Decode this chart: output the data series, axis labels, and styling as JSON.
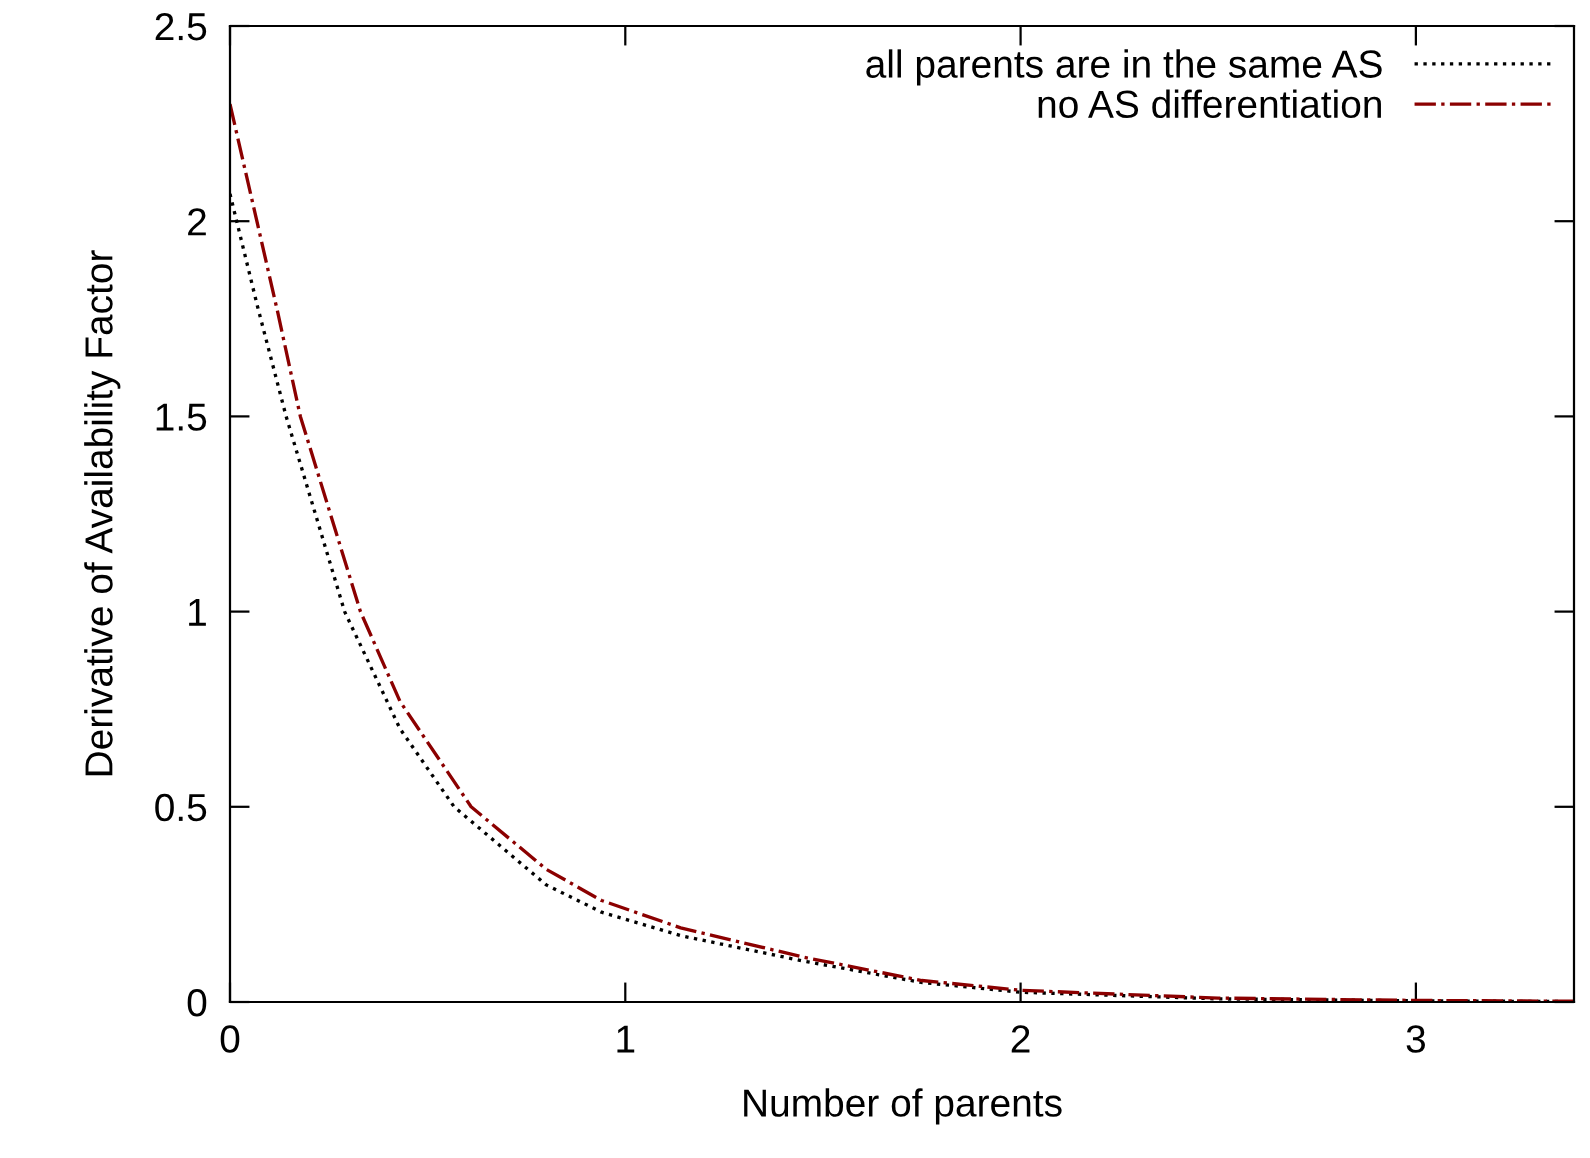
{
  "chart_data": {
    "type": "line",
    "xlabel": "Number of parents",
    "ylabel": "Derivative of Availability Factor",
    "xlim": [
      0,
      3.4
    ],
    "xticks": [
      0,
      1,
      2,
      3
    ],
    "ylim": [
      0,
      2.5
    ],
    "yticks": [
      0,
      0.5,
      1,
      1.5,
      2,
      2.5
    ],
    "grid": false,
    "legend": "top right",
    "marker": "none",
    "series": [
      {
        "name": "all parents are in the same AS",
        "color": "#000000",
        "line_style": "dotted",
        "x": [
          0,
          0.07,
          0.142,
          0.29,
          0.43,
          0.567,
          0.8,
          0.94,
          1.14,
          1.45,
          1.75,
          2.0,
          2.5,
          3.0,
          3.4
        ],
        "values": [
          2.07,
          1.78,
          1.5,
          1.0,
          0.7,
          0.5,
          0.3,
          0.23,
          0.17,
          0.105,
          0.05,
          0.025,
          0.008,
          0.003,
          0.001
        ]
      },
      {
        "name": "no AS differentiation",
        "color": "#8b0000",
        "line_style": "dashdot",
        "x": [
          0,
          0.068,
          0.12,
          0.178,
          0.33,
          0.43,
          0.61,
          0.8,
          0.94,
          1.14,
          1.45,
          1.75,
          2.0,
          2.5,
          3.0,
          3.4
        ],
        "values": [
          2.3,
          2.0,
          1.77,
          1.5,
          1.0,
          0.77,
          0.5,
          0.34,
          0.26,
          0.19,
          0.115,
          0.055,
          0.03,
          0.01,
          0.004,
          0.002
        ]
      }
    ]
  }
}
